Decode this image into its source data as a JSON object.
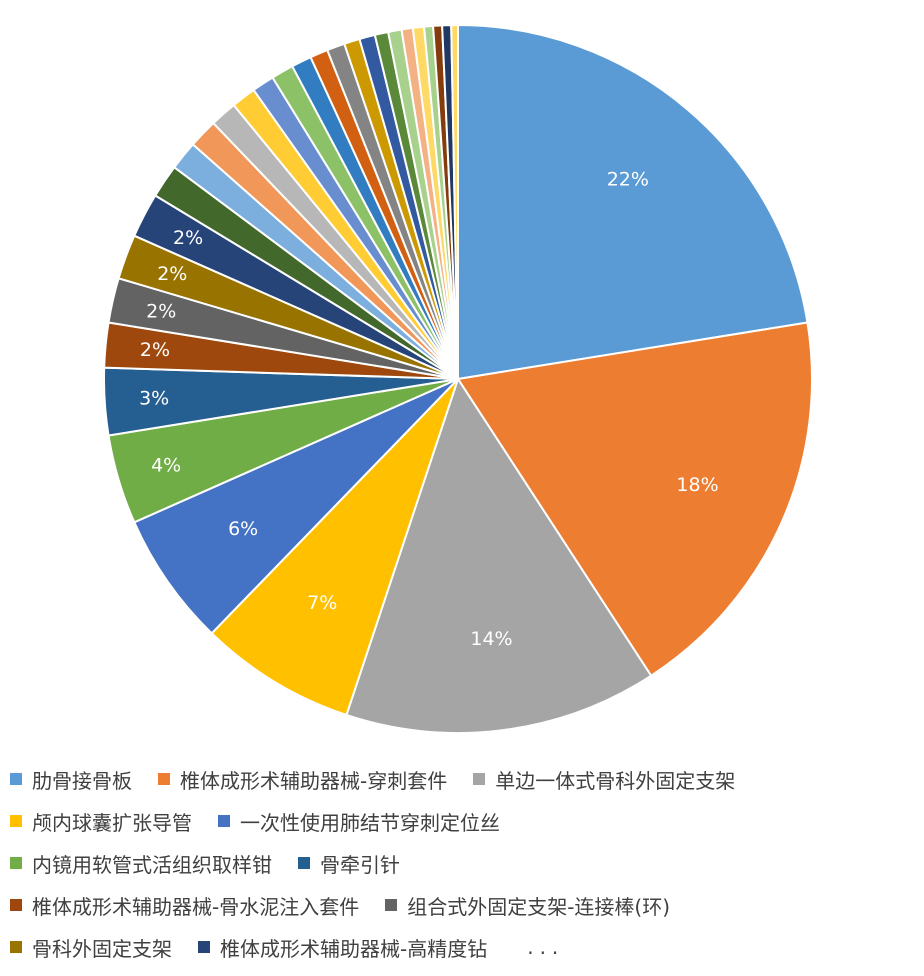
{
  "chart_data": {
    "type": "pie",
    "title": "",
    "legend_position": "bottom",
    "slices": [
      {
        "label": "肋骨接骨板",
        "value": 22,
        "data_label": "22%",
        "color": "#5B9BD5"
      },
      {
        "label": "椎体成形术辅助器械-穿刺套件",
        "value": 18,
        "data_label": "18%",
        "color": "#ED7D31"
      },
      {
        "label": "单边一体式骨科外固定支架",
        "value": 14,
        "data_label": "14%",
        "color": "#A5A5A5"
      },
      {
        "label": "颅内球囊扩张导管",
        "value": 7,
        "data_label": "7%",
        "color": "#FFC000"
      },
      {
        "label": "一次性使用肺结节穿刺定位丝",
        "value": 6,
        "data_label": "6%",
        "color": "#4472C4"
      },
      {
        "label": "内镜用软管式活组织取样钳",
        "value": 4,
        "data_label": "4%",
        "color": "#70AD47"
      },
      {
        "label": "骨牵引针",
        "value": 3,
        "data_label": "3%",
        "color": "#255E91"
      },
      {
        "label": "椎体成形术辅助器械-骨水泥注入套件",
        "value": 2,
        "data_label": "2%",
        "color": "#9E480E"
      },
      {
        "label": "组合式外固定支架-连接棒(环)",
        "value": 2,
        "data_label": "2%",
        "color": "#636363"
      },
      {
        "label": "骨科外固定支架",
        "value": 2,
        "data_label": "2%",
        "color": "#997300"
      },
      {
        "label": "椎体成形术辅助器械-高精度钻",
        "value": 2,
        "data_label": "2%",
        "color": "#264478"
      },
      {
        "value": 1.5,
        "color": "#43682B"
      },
      {
        "value": 1.3,
        "color": "#7CAFDD"
      },
      {
        "value": 1.3,
        "color": "#F1975A"
      },
      {
        "value": 1.2,
        "color": "#B7B7B7"
      },
      {
        "value": 1.1,
        "color": "#FFCD33"
      },
      {
        "value": 1.0,
        "color": "#698ED0"
      },
      {
        "value": 1.0,
        "color": "#8CC168"
      },
      {
        "value": 0.9,
        "color": "#327DC2"
      },
      {
        "value": 0.8,
        "color": "#D26012"
      },
      {
        "value": 0.8,
        "color": "#848484"
      },
      {
        "value": 0.7,
        "color": "#CC9A00"
      },
      {
        "value": 0.7,
        "color": "#335AA1"
      },
      {
        "value": 0.6,
        "color": "#5A8A39"
      },
      {
        "value": 0.6,
        "color": "#A9D18E"
      },
      {
        "value": 0.5,
        "color": "#F4B183"
      },
      {
        "value": 0.5,
        "color": "#FFD966"
      },
      {
        "value": 0.4,
        "color": "#A9D18E"
      },
      {
        "value": 0.4,
        "color": "#843C0C"
      },
      {
        "value": 0.4,
        "color": "#1F3864"
      },
      {
        "value": 0.3,
        "color": "#FFD966"
      }
    ]
  },
  "legend": {
    "ellipsis": "..."
  }
}
